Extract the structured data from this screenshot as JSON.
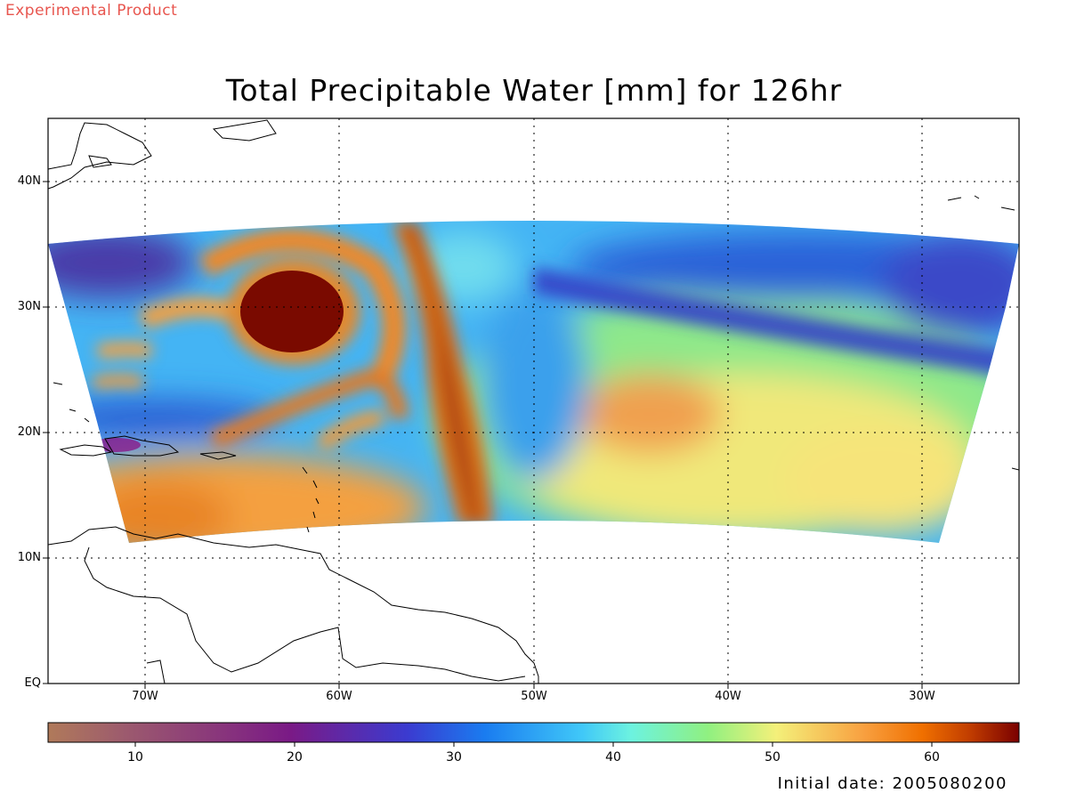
{
  "header": {
    "product_label": "Experimental Product"
  },
  "map": {
    "title": "Total Precipitable Water [mm] for 126hr",
    "lat_labels": [
      "40N",
      "30N",
      "20N",
      "10N",
      "EQ"
    ],
    "lon_labels": [
      "70W",
      "60W",
      "50W",
      "40W",
      "30W"
    ],
    "lon_range": [
      -75,
      -25
    ],
    "lat_range": [
      0,
      45
    ],
    "grid": "dotted",
    "storm_center": {
      "lon": -62.5,
      "lat": 29
    },
    "coastline_color": "#000000"
  },
  "colorbar": {
    "ticks": [
      "10",
      "20",
      "30",
      "40",
      "50",
      "60"
    ],
    "range": [
      5,
      65
    ],
    "colors": [
      "#b07a5a",
      "#9c5a6e",
      "#7a1a86",
      "#3b3bd0",
      "#1a7cf0",
      "#40c8f8",
      "#6cf2e0",
      "#90f080",
      "#f4f07a",
      "#f8a040",
      "#f07000",
      "#c03c00",
      "#7a0000"
    ]
  },
  "footer": {
    "initial_date": "Initial date: 2005080200"
  }
}
